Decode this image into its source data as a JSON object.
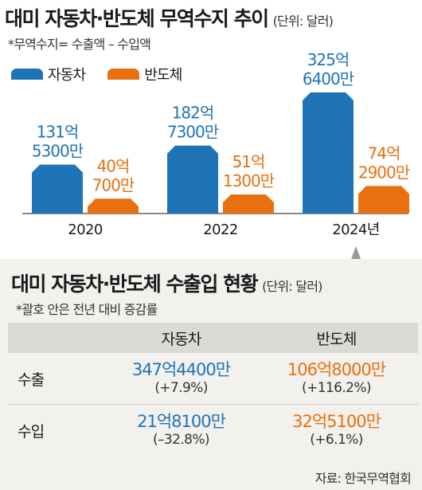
{
  "top_chart": {
    "title": "대미 자동차·반도체 무역수지 추이",
    "unit": "(단위: 달러)",
    "note": "*무역수지= 수출액 – 수입액"
  },
  "chart_data": {
    "type": "bar",
    "title": "대미 자동차·반도체 무역수지 추이",
    "unit": "(단위: 달러)",
    "categories": [
      "2020",
      "2022",
      "2024년"
    ],
    "series": [
      {
        "name": "자동차",
        "color": "#1f73b7",
        "values": [
          131.53,
          182.73,
          325.64
        ],
        "labels": [
          [
            "131억",
            "5300만"
          ],
          [
            "182억",
            "7300만"
          ],
          [
            "325억",
            "6400만"
          ]
        ]
      },
      {
        "name": "반도체",
        "color": "#e8700e",
        "values": [
          40.07,
          51.13,
          74.29
        ],
        "labels": [
          [
            "40억",
            "700만"
          ],
          [
            "51억",
            "1300만"
          ],
          [
            "74억",
            "2900만"
          ]
        ]
      }
    ],
    "ylim": [
      0,
      325.64
    ]
  },
  "bottom_table": {
    "title": "대미 자동차·반도체 수출입 현황",
    "unit": "(단위: 달러)",
    "note": "*괄호 안은 전년 대비 증감률",
    "headers": [
      "",
      "자동차",
      "반도체"
    ],
    "rows": [
      {
        "label": "수출",
        "auto": {
          "value": "347억4400만",
          "change": "(+7.9%)"
        },
        "semi": {
          "value": "106억8000만",
          "change": "(+116.2%)"
        }
      },
      {
        "label": "수입",
        "auto": {
          "value": "21억8100만",
          "change": "(–32.8%)"
        },
        "semi": {
          "value": "32억5100만",
          "change": "(+6.1%)"
        }
      }
    ],
    "colors": {
      "auto": "#1f73b7",
      "semi": "#e8700e"
    }
  },
  "source": "자료: 한국무역협회"
}
